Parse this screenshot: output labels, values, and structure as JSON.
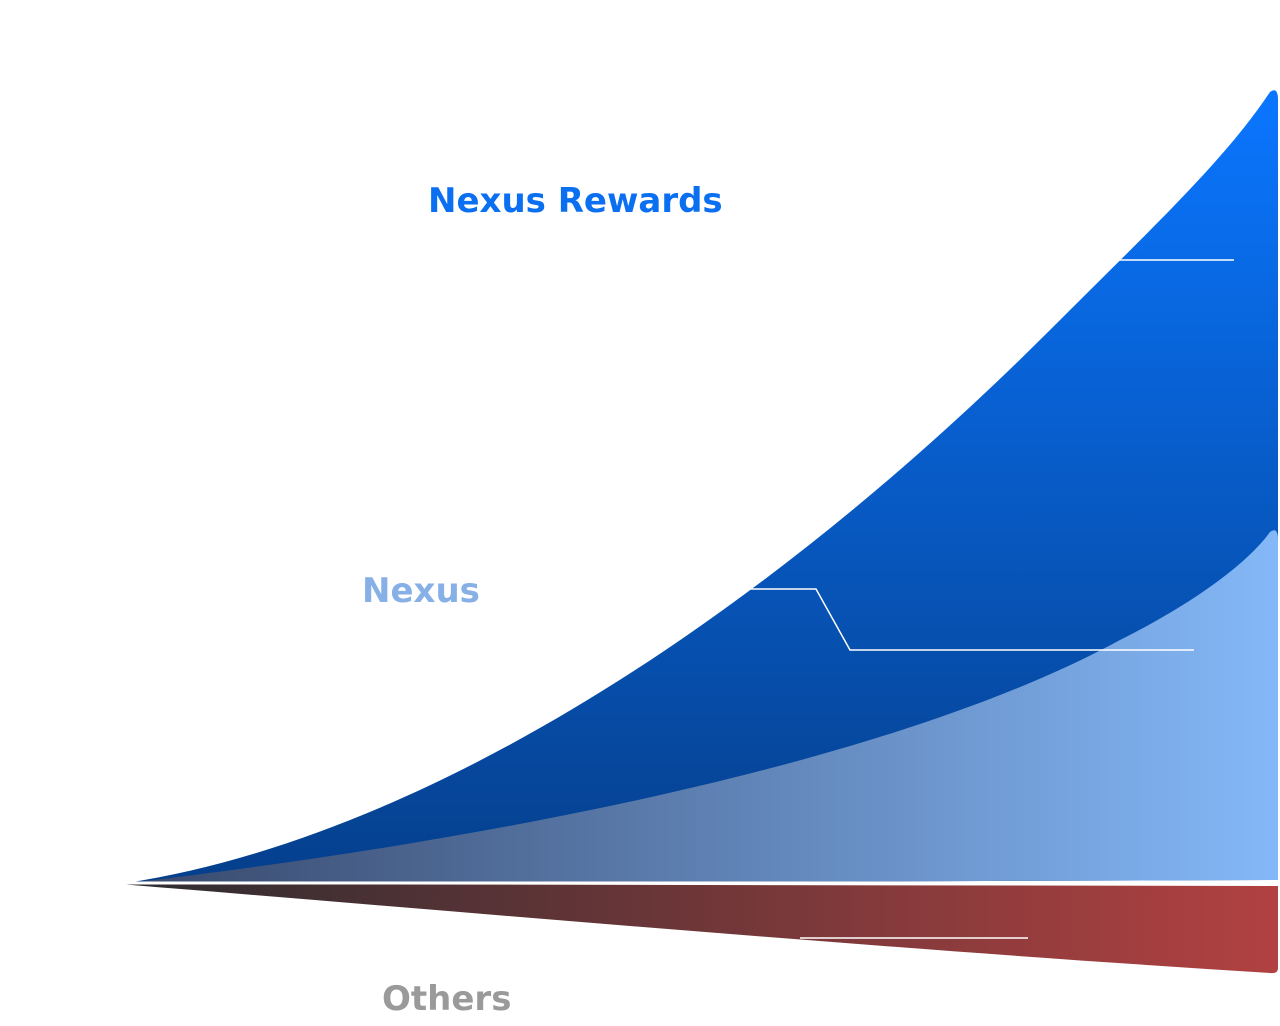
{
  "chart_data": {
    "type": "area",
    "title": "",
    "xlabel": "",
    "ylabel": "",
    "grid": false,
    "legend": "none",
    "series": [
      {
        "name": "Nexus Rewards",
        "color": "#0a72f2",
        "description_points": [
          0,
          0.2,
          0.45,
          0.72,
          1.0
        ]
      },
      {
        "name": "Nexus",
        "color": "#7fb5f5"
      },
      {
        "name": "Others",
        "color": "#b04040"
      }
    ],
    "colors": {
      "rewards_top": "#0a76ff",
      "rewards_bottom": "#05418f",
      "nexus_left": "#3a4e6e",
      "nexus_right": "#82b6f6",
      "others_left": "#2e2e32",
      "others_right": "#b14040",
      "label_rewards": "#0a6ff0",
      "label_nexus": "#86b0e6",
      "label_others": "#9a9a9a"
    }
  }
}
